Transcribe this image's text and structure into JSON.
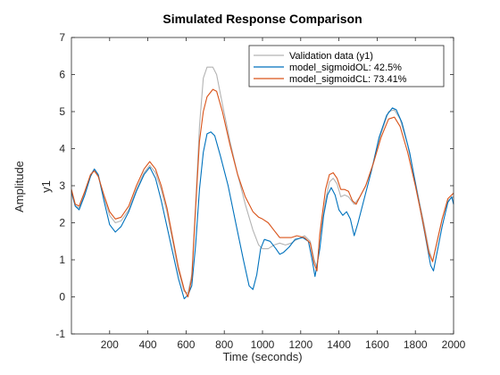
{
  "chart_data": {
    "type": "line",
    "title": "Simulated Response Comparison",
    "xlabel": "Time (seconds)",
    "ylabel": "y1",
    "group_label": "Amplitude",
    "xlim": [
      0,
      2000
    ],
    "ylim": [
      -1,
      7
    ],
    "xticks": [
      200,
      400,
      600,
      800,
      1000,
      1200,
      1400,
      1600,
      1800,
      2000
    ],
    "yticks": [
      -1,
      0,
      1,
      2,
      3,
      4,
      5,
      6,
      7
    ],
    "grid": false,
    "legend_position": "top-right",
    "series": [
      {
        "name": "Validation data (y1)",
        "color": "#B3B3B3",
        "points": [
          [
            0,
            2.8
          ],
          [
            20,
            2.45
          ],
          [
            40,
            2.4
          ],
          [
            70,
            2.8
          ],
          [
            100,
            3.3
          ],
          [
            120,
            3.45
          ],
          [
            140,
            3.3
          ],
          [
            170,
            2.7
          ],
          [
            200,
            2.2
          ],
          [
            230,
            2.0
          ],
          [
            260,
            2.05
          ],
          [
            300,
            2.35
          ],
          [
            340,
            2.9
          ],
          [
            380,
            3.35
          ],
          [
            410,
            3.55
          ],
          [
            440,
            3.35
          ],
          [
            470,
            2.9
          ],
          [
            500,
            2.3
          ],
          [
            530,
            1.5
          ],
          [
            560,
            0.7
          ],
          [
            590,
            0.15
          ],
          [
            610,
            0.1
          ],
          [
            630,
            0.6
          ],
          [
            650,
            2.5
          ],
          [
            670,
            4.6
          ],
          [
            690,
            5.9
          ],
          [
            710,
            6.2
          ],
          [
            740,
            6.2
          ],
          [
            760,
            6.0
          ],
          [
            790,
            5.2
          ],
          [
            830,
            4.2
          ],
          [
            870,
            3.3
          ],
          [
            910,
            2.5
          ],
          [
            950,
            1.8
          ],
          [
            980,
            1.4
          ],
          [
            1000,
            1.3
          ],
          [
            1030,
            1.3
          ],
          [
            1060,
            1.4
          ],
          [
            1090,
            1.45
          ],
          [
            1120,
            1.4
          ],
          [
            1150,
            1.45
          ],
          [
            1180,
            1.55
          ],
          [
            1220,
            1.65
          ],
          [
            1250,
            1.5
          ],
          [
            1270,
            1.0
          ],
          [
            1285,
            0.8
          ],
          [
            1300,
            1.6
          ],
          [
            1330,
            2.6
          ],
          [
            1350,
            3.1
          ],
          [
            1370,
            3.2
          ],
          [
            1390,
            3.05
          ],
          [
            1410,
            2.7
          ],
          [
            1430,
            2.75
          ],
          [
            1450,
            2.7
          ],
          [
            1480,
            2.5
          ],
          [
            1510,
            2.7
          ],
          [
            1540,
            3.0
          ],
          [
            1580,
            3.6
          ],
          [
            1620,
            4.4
          ],
          [
            1660,
            5.0
          ],
          [
            1690,
            5.05
          ],
          [
            1720,
            4.8
          ],
          [
            1760,
            4.1
          ],
          [
            1800,
            3.1
          ],
          [
            1840,
            2.1
          ],
          [
            1870,
            1.3
          ],
          [
            1890,
            0.95
          ],
          [
            1910,
            1.4
          ],
          [
            1940,
            2.1
          ],
          [
            1970,
            2.6
          ],
          [
            2000,
            2.7
          ]
        ]
      },
      {
        "name": "model_sigmoidOL:  42.5%",
        "color": "#0072BD",
        "points": [
          [
            0,
            2.85
          ],
          [
            20,
            2.45
          ],
          [
            40,
            2.35
          ],
          [
            70,
            2.75
          ],
          [
            100,
            3.25
          ],
          [
            120,
            3.45
          ],
          [
            140,
            3.3
          ],
          [
            170,
            2.6
          ],
          [
            200,
            1.95
          ],
          [
            230,
            1.75
          ],
          [
            260,
            1.9
          ],
          [
            300,
            2.3
          ],
          [
            340,
            2.85
          ],
          [
            380,
            3.3
          ],
          [
            410,
            3.5
          ],
          [
            440,
            3.2
          ],
          [
            470,
            2.6
          ],
          [
            500,
            1.9
          ],
          [
            530,
            1.2
          ],
          [
            560,
            0.5
          ],
          [
            590,
            -0.05
          ],
          [
            610,
            0.05
          ],
          [
            630,
            0.3
          ],
          [
            650,
            1.4
          ],
          [
            670,
            2.9
          ],
          [
            690,
            3.9
          ],
          [
            710,
            4.4
          ],
          [
            730,
            4.45
          ],
          [
            750,
            4.35
          ],
          [
            780,
            3.8
          ],
          [
            820,
            3.0
          ],
          [
            860,
            2.0
          ],
          [
            900,
            1.0
          ],
          [
            930,
            0.3
          ],
          [
            950,
            0.2
          ],
          [
            970,
            0.6
          ],
          [
            990,
            1.3
          ],
          [
            1010,
            1.55
          ],
          [
            1040,
            1.5
          ],
          [
            1070,
            1.3
          ],
          [
            1090,
            1.15
          ],
          [
            1110,
            1.2
          ],
          [
            1140,
            1.35
          ],
          [
            1170,
            1.55
          ],
          [
            1210,
            1.6
          ],
          [
            1240,
            1.5
          ],
          [
            1260,
            1.0
          ],
          [
            1275,
            0.55
          ],
          [
            1300,
            1.3
          ],
          [
            1320,
            2.2
          ],
          [
            1340,
            2.75
          ],
          [
            1360,
            2.95
          ],
          [
            1380,
            2.75
          ],
          [
            1400,
            2.35
          ],
          [
            1420,
            2.2
          ],
          [
            1440,
            2.3
          ],
          [
            1460,
            2.1
          ],
          [
            1480,
            1.65
          ],
          [
            1500,
            2.0
          ],
          [
            1530,
            2.6
          ],
          [
            1570,
            3.4
          ],
          [
            1610,
            4.3
          ],
          [
            1650,
            4.9
          ],
          [
            1680,
            5.1
          ],
          [
            1700,
            5.05
          ],
          [
            1730,
            4.7
          ],
          [
            1770,
            3.9
          ],
          [
            1810,
            2.8
          ],
          [
            1850,
            1.7
          ],
          [
            1880,
            0.85
          ],
          [
            1895,
            0.7
          ],
          [
            1910,
            1.1
          ],
          [
            1940,
            1.9
          ],
          [
            1970,
            2.55
          ],
          [
            1990,
            2.7
          ],
          [
            2000,
            2.5
          ]
        ]
      },
      {
        "name": "model_sigmoidCL:  73.41%",
        "color": "#D95319",
        "points": [
          [
            0,
            2.9
          ],
          [
            20,
            2.5
          ],
          [
            40,
            2.45
          ],
          [
            70,
            2.85
          ],
          [
            100,
            3.3
          ],
          [
            120,
            3.4
          ],
          [
            140,
            3.25
          ],
          [
            170,
            2.75
          ],
          [
            200,
            2.3
          ],
          [
            230,
            2.1
          ],
          [
            260,
            2.15
          ],
          [
            300,
            2.45
          ],
          [
            340,
            3.0
          ],
          [
            380,
            3.45
          ],
          [
            410,
            3.65
          ],
          [
            440,
            3.45
          ],
          [
            470,
            3.0
          ],
          [
            500,
            2.4
          ],
          [
            530,
            1.6
          ],
          [
            560,
            0.8
          ],
          [
            590,
            0.2
          ],
          [
            610,
            0.0
          ],
          [
            630,
            0.5
          ],
          [
            650,
            2.4
          ],
          [
            670,
            4.2
          ],
          [
            690,
            5.0
          ],
          [
            710,
            5.4
          ],
          [
            740,
            5.6
          ],
          [
            760,
            5.55
          ],
          [
            790,
            5.0
          ],
          [
            830,
            4.1
          ],
          [
            870,
            3.3
          ],
          [
            910,
            2.7
          ],
          [
            950,
            2.3
          ],
          [
            980,
            2.15
          ],
          [
            1000,
            2.1
          ],
          [
            1030,
            2.0
          ],
          [
            1060,
            1.8
          ],
          [
            1090,
            1.6
          ],
          [
            1120,
            1.6
          ],
          [
            1150,
            1.6
          ],
          [
            1180,
            1.65
          ],
          [
            1220,
            1.6
          ],
          [
            1250,
            1.45
          ],
          [
            1270,
            0.9
          ],
          [
            1285,
            0.7
          ],
          [
            1300,
            1.7
          ],
          [
            1330,
            2.9
          ],
          [
            1350,
            3.3
          ],
          [
            1370,
            3.35
          ],
          [
            1390,
            3.2
          ],
          [
            1410,
            2.9
          ],
          [
            1430,
            2.9
          ],
          [
            1450,
            2.85
          ],
          [
            1470,
            2.6
          ],
          [
            1490,
            2.5
          ],
          [
            1510,
            2.7
          ],
          [
            1540,
            3.0
          ],
          [
            1580,
            3.6
          ],
          [
            1620,
            4.3
          ],
          [
            1660,
            4.8
          ],
          [
            1690,
            4.85
          ],
          [
            1720,
            4.6
          ],
          [
            1760,
            3.9
          ],
          [
            1800,
            3.0
          ],
          [
            1840,
            2.0
          ],
          [
            1870,
            1.2
          ],
          [
            1890,
            0.95
          ],
          [
            1910,
            1.4
          ],
          [
            1940,
            2.1
          ],
          [
            1970,
            2.65
          ],
          [
            2000,
            2.8
          ]
        ]
      }
    ]
  }
}
